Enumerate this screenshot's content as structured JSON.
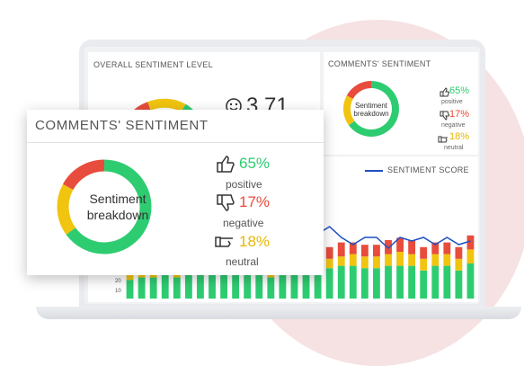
{
  "colors": {
    "positive": "#2ecc71",
    "negative": "#e74c3c",
    "neutral": "#f1c40f",
    "line": "#1f4fc1"
  },
  "overall": {
    "title": "OVERALL SENTIMENT LEVEL",
    "score": "3.71",
    "gauge_tick": "3",
    "smile_icon": "smile-icon"
  },
  "small_card": {
    "title": "COMMENTS' SENTIMENT",
    "center_label_1": "Sentiment",
    "center_label_2": "breakdown",
    "positive": {
      "value": "65%",
      "label": "positive"
    },
    "negative": {
      "value": "17%",
      "label": "negative"
    },
    "neutral": {
      "value": "18%",
      "label": "neutral"
    }
  },
  "chart_panel": {
    "legend": "SENTIMENT SCORE",
    "y_ticks": [
      "20",
      "10"
    ]
  },
  "big_card": {
    "title": "COMMENTS' SENTIMENT",
    "center_label_1": "Sentiment",
    "center_label_2": "breakdown",
    "positive": {
      "value": "65%",
      "label": "positive"
    },
    "negative": {
      "value": "17%",
      "label": "negative"
    },
    "neutral": {
      "value": "18%",
      "label": "neutral"
    }
  },
  "chart_data": {
    "type": "bar",
    "series": [
      {
        "name": "positive",
        "values": [
          8,
          9,
          9,
          10,
          9,
          10,
          10,
          11,
          10,
          10,
          11,
          10,
          9,
          11,
          12,
          12,
          12,
          13,
          14,
          14,
          13,
          13,
          14,
          14,
          14,
          12,
          14,
          14,
          12,
          15
        ]
      },
      {
        "name": "neutral",
        "values": [
          4,
          4,
          3,
          3,
          3,
          3,
          3,
          3,
          3,
          3,
          3,
          3,
          3,
          3,
          3,
          3,
          4,
          4,
          4,
          5,
          5,
          5,
          5,
          6,
          5,
          5,
          5,
          5,
          5,
          6
        ]
      },
      {
        "name": "negative",
        "values": [
          0,
          0,
          0,
          0,
          0,
          0,
          0,
          0,
          0,
          0,
          0,
          0,
          0,
          0,
          0,
          0,
          4,
          5,
          6,
          5,
          5,
          5,
          6,
          6,
          6,
          5,
          5,
          5,
          5,
          6
        ]
      }
    ],
    "line": {
      "name": "SENTIMENT SCORE",
      "values": [
        3.8,
        3.7,
        3.8,
        3.9,
        3.6,
        3.8,
        3.7,
        3.8,
        3.8,
        3.7,
        3.7,
        3.8,
        3.8,
        3.7,
        3.7,
        3.8,
        3.9,
        4.1,
        3.8,
        3.6,
        3.8,
        3.8,
        3.5,
        3.8,
        3.7,
        3.8,
        3.6,
        3.8,
        3.6,
        3.7
      ]
    }
  },
  "donut_data": {
    "positive": 65,
    "negative": 17,
    "neutral": 18
  }
}
